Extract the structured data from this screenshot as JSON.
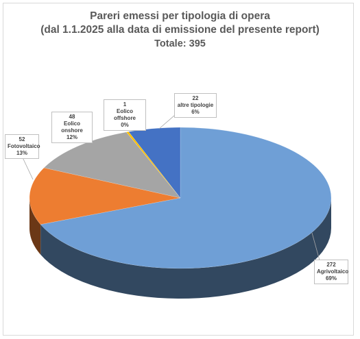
{
  "chart_data": {
    "type": "pie",
    "title": "Pareri emessi per tipologia di opera",
    "subtitle": "(dal 1.1.2025 alla data di emissione del presente report)",
    "total_text": "Totale: 395",
    "slices": [
      {
        "name": "Agrivoltaico",
        "value": 272,
        "percent": "69%",
        "color": "#6f9fd6"
      },
      {
        "name": "Fotovoltaico",
        "value": 52,
        "percent": "13%",
        "color": "#ed7d31"
      },
      {
        "name": "Eolico onshore",
        "value": 48,
        "percent": "12%",
        "color": "#a5a5a5"
      },
      {
        "name": "Eolico offshore",
        "value": 1,
        "percent": "0%",
        "color": "#ffc000"
      },
      {
        "name": "altre tipologie",
        "value": 22,
        "percent": "6%",
        "color": "#4472c4"
      }
    ]
  }
}
